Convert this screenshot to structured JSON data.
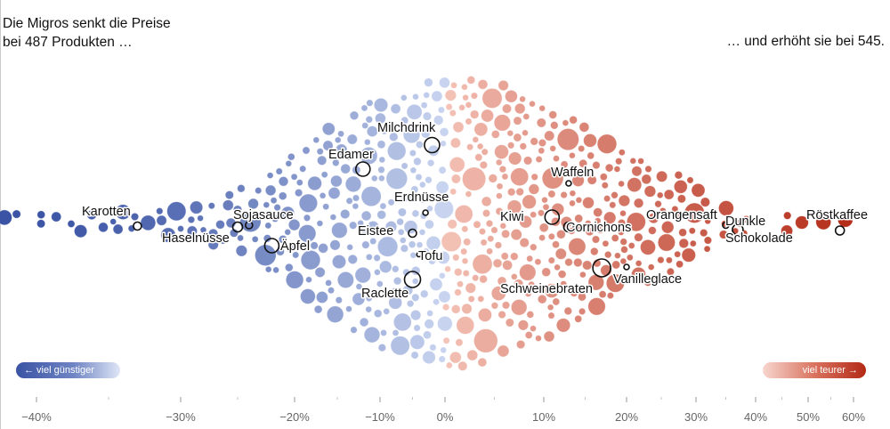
{
  "title_left": [
    "Die Migros senkt die Preise",
    "bei 487 Produkten …"
  ],
  "title_right": "… und erhöht sie bei 545.",
  "legend": {
    "cheaper": "← viel günstiger",
    "pricier": "viel teurer →",
    "cheaper_color": "#3a53a4",
    "pricier_color": "#b32a16"
  },
  "chart_data": {
    "type": "scatter",
    "subtype": "beeswarm",
    "x_axis": {
      "unit": "% Preisänderung",
      "ticks": [
        -40,
        -30,
        -20,
        -10,
        0,
        10,
        20,
        30,
        40,
        50,
        60
      ],
      "tick_labels": [
        "−40%",
        "−30%",
        "−20%",
        "−10%",
        "0%",
        "10%",
        "20%",
        "30%",
        "40%",
        "50%",
        "60%"
      ],
      "scale": "nonlinear (compressed beyond ±30%)"
    },
    "counts": {
      "decreased": 487,
      "increased": 545
    },
    "highlighted_products": [
      {
        "label": "Karotten",
        "x": -33
      },
      {
        "label": "Haselnüsse",
        "x": -25
      },
      {
        "label": "Sojasauce",
        "x": -24
      },
      {
        "label": "Äpfel",
        "x": -22
      },
      {
        "label": "Edamer",
        "x": -12
      },
      {
        "label": "Milchdrink",
        "x": -2
      },
      {
        "label": "Erdnüsse",
        "x": -3
      },
      {
        "label": "Eistee",
        "x": -5
      },
      {
        "label": "Tofu",
        "x": -4
      },
      {
        "label": "Raclette",
        "x": -5
      },
      {
        "label": "Waffeln",
        "x": 13
      },
      {
        "label": "Kiwi",
        "x": 11
      },
      {
        "label": "Cornichons",
        "x": 13
      },
      {
        "label": "Schweinebraten",
        "x": 17
      },
      {
        "label": "Vanilleglace",
        "x": 20
      },
      {
        "label": "Orangensaft",
        "x": 35
      },
      {
        "label": "Dunkle Schokolade",
        "x": 37
      },
      {
        "label": "Röstkaffee",
        "x": 57
      }
    ],
    "colors": {
      "neg_dark": "#3a53a4",
      "neg_light": "#c7d3ef",
      "pos_light": "#f5c4b8",
      "pos_dark": "#b32a16"
    }
  }
}
